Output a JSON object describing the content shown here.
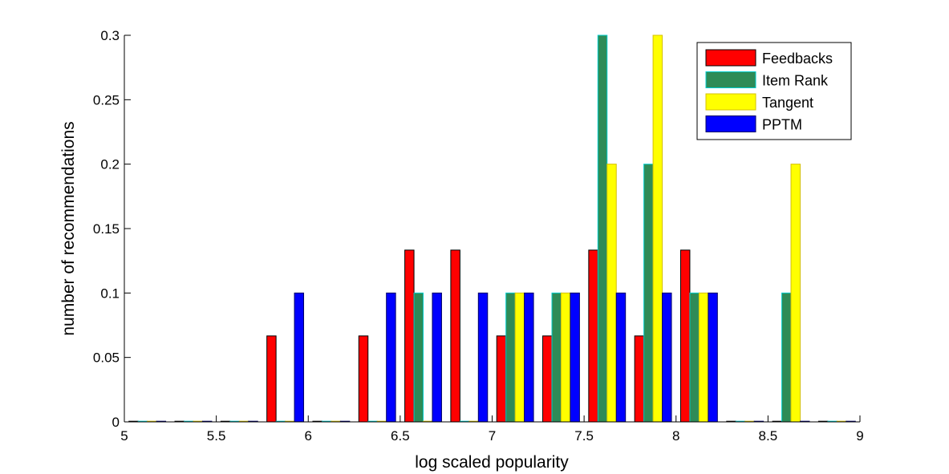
{
  "chart_data": {
    "type": "bar",
    "xlabel": "log scaled popularity",
    "ylabel": "number of recommendations",
    "xlim": [
      5,
      9
    ],
    "ylim": [
      0,
      0.3
    ],
    "x_ticks": [
      "5",
      "5.5",
      "6",
      "6.5",
      "7",
      "7.5",
      "8",
      "8.5",
      "9"
    ],
    "y_ticks": [
      "0",
      "0.05",
      "0.1",
      "0.15",
      "0.2",
      "0.25",
      "0.3"
    ],
    "legend_position": "top-right",
    "grid": false,
    "bin_centers": [
      5.125,
      5.375,
      5.625,
      5.875,
      6.125,
      6.375,
      6.625,
      6.875,
      7.125,
      7.375,
      7.625,
      7.875,
      8.125,
      8.375,
      8.625,
      8.875
    ],
    "series": [
      {
        "name": "Feedbacks",
        "color": "#ff0000",
        "edge": "#000000",
        "values": [
          0,
          0,
          0,
          0.0667,
          0,
          0.0667,
          0.1333,
          0.1333,
          0.0667,
          0.0667,
          0.1333,
          0.0667,
          0.1333,
          0,
          0,
          0
        ]
      },
      {
        "name": "Item Rank",
        "color": "#2e8b57",
        "edge": "#00cccc",
        "values": [
          0,
          0,
          0,
          0,
          0,
          0,
          0.1,
          0,
          0.1,
          0.1,
          0.3,
          0.2,
          0.1,
          0,
          0.1,
          0
        ]
      },
      {
        "name": "Tangent",
        "color": "#ffff00",
        "edge": "#d4c000",
        "values": [
          0,
          0,
          0,
          0,
          0,
          0,
          0,
          0,
          0.1,
          0.1,
          0.2,
          0.3,
          0.1,
          0,
          0.2,
          0
        ]
      },
      {
        "name": "PPTM",
        "color": "#0000ff",
        "edge": "#000066",
        "values": [
          0,
          0,
          0,
          0.1,
          0,
          0.1,
          0.1,
          0.1,
          0.1,
          0.1,
          0.1,
          0.1,
          0.1,
          0,
          0,
          0
        ]
      }
    ]
  }
}
